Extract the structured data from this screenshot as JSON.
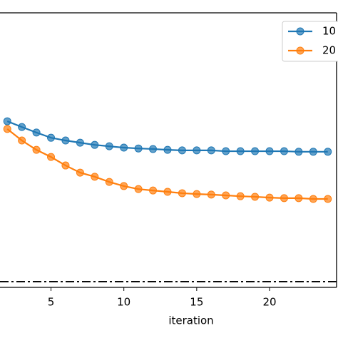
{
  "chart_data": {
    "type": "line",
    "xlabel": "iteration",
    "x": [
      2,
      3,
      4,
      5,
      6,
      7,
      8,
      9,
      10,
      11,
      12,
      13,
      14,
      15,
      16,
      17,
      18,
      19,
      20,
      21,
      22,
      23,
      24
    ],
    "series": [
      {
        "name": "10",
        "color": "#1f77b4",
        "values": [
          0.605,
          0.584,
          0.564,
          0.545,
          0.535,
          0.527,
          0.519,
          0.514,
          0.509,
          0.506,
          0.504,
          0.501,
          0.499,
          0.499,
          0.499,
          0.496,
          0.496,
          0.496,
          0.496,
          0.496,
          0.494,
          0.494,
          0.494
        ]
      },
      {
        "name": "20",
        "color": "#ff7f0e",
        "values": [
          0.577,
          0.535,
          0.501,
          0.475,
          0.444,
          0.418,
          0.403,
          0.384,
          0.369,
          0.358,
          0.353,
          0.348,
          0.343,
          0.34,
          0.338,
          0.335,
          0.332,
          0.33,
          0.327,
          0.325,
          0.325,
          0.322,
          0.322
        ]
      }
    ],
    "hline": 0.021,
    "xlim": [
      1.5,
      24.6
    ],
    "ylim": [
      0,
      1
    ],
    "xticks": [
      5,
      10,
      15,
      20
    ],
    "legend": "upper right"
  }
}
